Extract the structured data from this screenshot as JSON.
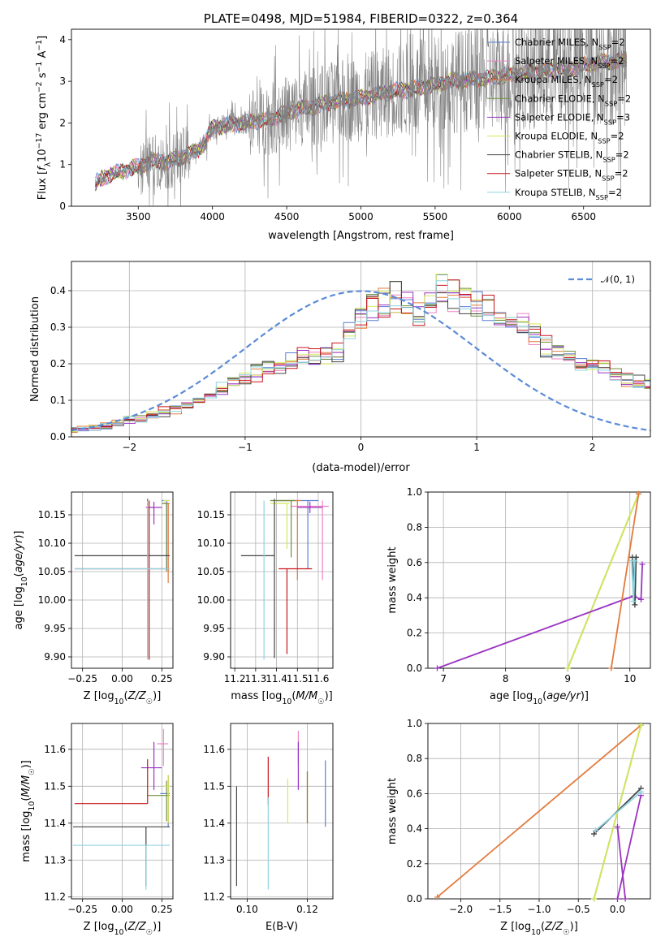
{
  "figure": {
    "title": "PLATE=0498, MJD=51984, FIBERID=0322, z=0.364"
  },
  "models": [
    {
      "name": "Chabrier MILES",
      "nssp": "2",
      "color": "#5b7fd4"
    },
    {
      "name": "Salpeter MILES",
      "nssp": "2",
      "color": "#ee82c3"
    },
    {
      "name": "Kroupa MILES",
      "nssp": "2",
      "color": "#e27b3c"
    },
    {
      "name": "Chabrier ELODIE",
      "nssp": "2",
      "color": "#6f8f3e"
    },
    {
      "name": "Salpeter ELODIE",
      "nssp": "3",
      "color": "#9b33c2"
    },
    {
      "name": "Kroupa ELODIE",
      "nssp": "2",
      "color": "#d4e85a"
    },
    {
      "name": "Chabrier STELIB",
      "nssp": "2",
      "color": "#444444"
    },
    {
      "name": "Salpeter STELIB",
      "nssp": "2",
      "color": "#c8161d"
    },
    {
      "name": "Kroupa STELIB",
      "nssp": "2",
      "color": "#8fd4e0"
    }
  ],
  "chart_data": [
    {
      "id": "spectrum",
      "type": "line",
      "title": "PLATE=0498, MJD=51984, FIBERID=0322, z=0.364",
      "xlabel": "wavelength [Angstrom, rest frame]",
      "ylabel": "Flux [f_λ 10^-17 erg cm^-2 s^-1 A^-1]",
      "xlim": [
        3050,
        6950
      ],
      "ylim": [
        0,
        4.25
      ],
      "xticks": [
        3500,
        4000,
        4500,
        5000,
        5500,
        6000,
        6500
      ],
      "yticks": [
        0,
        1,
        2,
        3,
        4
      ],
      "data_color": "#808080",
      "continuum": {
        "x": [
          3210,
          3300,
          3400,
          3500,
          3600,
          3700,
          3800,
          3900,
          3950,
          4000,
          4100,
          4200,
          4300,
          4400,
          4500,
          4600,
          4700,
          4800,
          4900,
          5000,
          5200,
          5400,
          5600,
          5800,
          6000,
          6200,
          6400,
          6600,
          6790
        ],
        "y": [
          0.55,
          0.75,
          0.85,
          0.95,
          1.1,
          1.05,
          1.2,
          1.35,
          1.55,
          1.9,
          1.95,
          2.0,
          2.05,
          2.1,
          2.25,
          2.35,
          2.4,
          2.5,
          2.55,
          2.6,
          2.75,
          2.85,
          3.0,
          3.05,
          3.15,
          3.25,
          3.3,
          3.45,
          3.5
        ]
      },
      "legend_loc": "upper right"
    },
    {
      "id": "residuals",
      "type": "line",
      "xlabel": "(data-model)/error",
      "ylabel": "Normed distribution",
      "xlim": [
        -2.5,
        2.5
      ],
      "ylim": [
        0,
        0.48
      ],
      "xticks": [
        -2,
        -1,
        0,
        1,
        2
      ],
      "yticks": [
        0.0,
        0.1,
        0.2,
        0.3,
        0.4
      ],
      "gaussian_label": "𝒩(0, 1)",
      "gaussian_color": "#5b8bd6",
      "bin_width": 0.1,
      "hist_base": [
        0.018,
        0.022,
        0.028,
        0.032,
        0.038,
        0.045,
        0.05,
        0.058,
        0.068,
        0.075,
        0.085,
        0.1,
        0.115,
        0.13,
        0.145,
        0.16,
        0.175,
        0.19,
        0.2,
        0.21,
        0.22,
        0.22,
        0.225,
        0.23,
        0.28,
        0.33,
        0.35,
        0.37,
        0.38,
        0.36,
        0.34,
        0.37,
        0.41,
        0.39,
        0.37,
        0.36,
        0.36,
        0.33,
        0.32,
        0.31,
        0.28,
        0.25,
        0.23,
        0.21,
        0.2,
        0.2,
        0.19,
        0.17,
        0.16,
        0.15,
        0.14,
        0.13,
        0.12,
        0.11,
        0.1,
        0.095,
        0.09,
        0.08,
        0.075,
        0.07,
        0.065,
        0.065,
        0.06,
        0.055,
        0.05,
        0.048,
        0.045
      ],
      "legend_loc": "upper right"
    },
    {
      "id": "age_vs_Z",
      "type": "scatter",
      "xlabel": "Z [log10(Z/Z☉)]",
      "ylabel": "age  [log10(age/yr)]",
      "xlim": [
        -0.32,
        0.32
      ],
      "ylim": [
        9.88,
        10.19
      ],
      "xticks": [
        -0.25,
        0.0,
        0.25
      ],
      "yticks": [
        9.9,
        9.95,
        10.0,
        10.05,
        10.1,
        10.15
      ],
      "points": [
        {
          "model": 0,
          "x": 0.28,
          "y": 10.175,
          "xerr": [
            0.03,
            0.02
          ],
          "yerr": [
            0.12,
            0.0
          ]
        },
        {
          "model": 1,
          "x": 0.29,
          "y": 10.17,
          "xerr": [
            0.04,
            0.01
          ],
          "yerr": [
            0.12,
            0.0
          ]
        },
        {
          "model": 2,
          "x": 0.29,
          "y": 10.17,
          "xerr": [
            0.03,
            0.01
          ],
          "yerr": [
            0.14,
            0.0
          ]
        },
        {
          "model": 3,
          "x": 0.28,
          "y": 10.17,
          "xerr": [
            0.03,
            0.01
          ],
          "yerr": [
            0.12,
            0.0
          ]
        },
        {
          "model": 4,
          "x": 0.2,
          "y": 10.163,
          "xerr": [
            0.05,
            0.05
          ],
          "yerr": [
            0.03,
            0.01
          ]
        },
        {
          "model": 5,
          "x": 0.29,
          "y": 10.175,
          "xerr": [
            0.03,
            0.01
          ],
          "yerr": [
            0.0,
            0.0
          ]
        },
        {
          "model": 6,
          "x": 0.16,
          "y": 10.078,
          "xerr": [
            0.46,
            0.14
          ],
          "yerr": [
            0.18,
            0.1
          ]
        },
        {
          "model": 7,
          "x": 0.17,
          "y": 10.055,
          "xerr": [
            0.47,
            0.13
          ],
          "yerr": [
            0.16,
            0.12
          ]
        },
        {
          "model": 8,
          "x": 0.16,
          "y": 10.055,
          "xerr": [
            0.46,
            0.14
          ],
          "yerr": [
            0.16,
            0.12
          ]
        }
      ]
    },
    {
      "id": "age_vs_mass",
      "type": "scatter",
      "xlabel": "mass [log10(M/M☉)]",
      "ylabel": "",
      "xlim": [
        11.18,
        11.67
      ],
      "ylim": [
        9.88,
        10.19
      ],
      "xticks": [
        11.2,
        11.3,
        11.4,
        11.5,
        11.6
      ],
      "yticks": [
        9.9,
        9.95,
        10.0,
        10.05,
        10.1,
        10.15
      ],
      "points": [
        {
          "model": 0,
          "x": 11.55,
          "y": 10.175,
          "xerr": [
            0.15,
            0.05
          ],
          "yerr": [
            0.12,
            0.0
          ]
        },
        {
          "model": 1,
          "x": 11.62,
          "y": 10.165,
          "xerr": [
            0.15,
            0.03
          ],
          "yerr": [
            0.13,
            0.01
          ]
        },
        {
          "model": 2,
          "x": 11.5,
          "y": 10.175,
          "xerr": [
            0.1,
            0.02
          ],
          "yerr": [
            0.14,
            0.0
          ]
        },
        {
          "model": 3,
          "x": 11.47,
          "y": 10.175,
          "xerr": [
            0.1,
            0.02
          ],
          "yerr": [
            0.1,
            0.0
          ]
        },
        {
          "model": 4,
          "x": 11.56,
          "y": 10.163,
          "xerr": [
            0.06,
            0.06
          ],
          "yerr": [
            0.01,
            0.01
          ]
        },
        {
          "model": 5,
          "x": 11.45,
          "y": 10.17,
          "xerr": [
            0.08,
            0.01
          ],
          "yerr": [
            0.08,
            0.0
          ]
        },
        {
          "model": 6,
          "x": 11.39,
          "y": 10.078,
          "xerr": [
            0.16,
            0.0
          ],
          "yerr": [
            0.18,
            0.1
          ]
        },
        {
          "model": 7,
          "x": 11.45,
          "y": 10.055,
          "xerr": [
            0.04,
            0.12
          ],
          "yerr": [
            0.15,
            0.0
          ]
        },
        {
          "model": 8,
          "x": 11.34,
          "y": 10.055,
          "xerr": [
            0.0,
            0.0
          ],
          "yerr": [
            0.16,
            0.12
          ]
        }
      ]
    },
    {
      "id": "weight_vs_age",
      "type": "line",
      "xlabel": "age  [log10(age/yr)]",
      "ylabel": "mass weight",
      "xlim": [
        6.75,
        10.33
      ],
      "ylim": [
        0,
        1.0
      ],
      "xticks": [
        7,
        8,
        9,
        10
      ],
      "yticks": [
        0.0,
        0.2,
        0.4,
        0.6,
        0.8,
        1.0
      ],
      "series": [
        {
          "model": 3,
          "x": [
            9.0,
            10.14
          ],
          "y": [
            0.0,
            0.99
          ]
        },
        {
          "model": 5,
          "x": [
            9.0,
            10.14
          ],
          "y": [
            0.0,
            0.99
          ]
        },
        {
          "model": 4,
          "x": [
            6.9,
            10.06,
            10.18,
            10.2
          ],
          "y": [
            0.0,
            0.41,
            0.39,
            0.59
          ]
        },
        {
          "model": 2,
          "x": [
            9.7,
            10.14
          ],
          "y": [
            0.0,
            0.99
          ]
        },
        {
          "model": 6,
          "x": [
            10.04,
            10.08,
            10.1
          ],
          "y": [
            0.63,
            0.36,
            0.63
          ]
        },
        {
          "model": 8,
          "x": [
            10.03,
            10.06,
            10.08
          ],
          "y": [
            0.61,
            0.38,
            0.61
          ]
        }
      ]
    },
    {
      "id": "mass_vs_Z",
      "type": "scatter",
      "xlabel": "Z [log10(Z/Z☉)]",
      "ylabel": "mass [log10(M/M☉)]",
      "xlim": [
        -0.32,
        0.32
      ],
      "ylim": [
        11.195,
        11.67
      ],
      "xticks": [
        -0.25,
        0.0,
        0.25
      ],
      "yticks": [
        11.2,
        11.3,
        11.4,
        11.5,
        11.6
      ],
      "points": [
        {
          "model": 0,
          "x": 0.29,
          "y": 11.48,
          "xerr": [
            0.05,
            0.01
          ],
          "yerr": [
            0.09,
            0.05
          ]
        },
        {
          "model": 1,
          "x": 0.26,
          "y": 11.615,
          "xerr": [
            0.04,
            0.03
          ],
          "yerr": [
            0.06,
            0.04
          ]
        },
        {
          "model": 2,
          "x": 0.29,
          "y": 11.5,
          "xerr": [
            0.02,
            0.01
          ],
          "yerr": [
            0.1,
            0.03
          ]
        },
        {
          "model": 3,
          "x": 0.28,
          "y": 11.475,
          "xerr": [
            0.12,
            0.02
          ],
          "yerr": [
            0.07,
            0.04
          ]
        },
        {
          "model": 4,
          "x": 0.2,
          "y": 11.55,
          "xerr": [
            0.08,
            0.05
          ],
          "yerr": [
            0.06,
            0.07
          ]
        },
        {
          "model": 5,
          "x": 0.29,
          "y": 11.5,
          "xerr": [
            0.03,
            0.01
          ],
          "yerr": [
            0.1,
            0.03
          ]
        },
        {
          "model": 6,
          "x": 0.15,
          "y": 11.39,
          "xerr": [
            0.46,
            0.15
          ],
          "yerr": [
            0.16,
            0.0
          ]
        },
        {
          "model": 7,
          "x": 0.16,
          "y": 11.453,
          "xerr": [
            0.46,
            0.0
          ],
          "yerr": [
            0.0,
            0.12
          ]
        },
        {
          "model": 8,
          "x": 0.15,
          "y": 11.34,
          "xerr": [
            0.46,
            0.15
          ],
          "yerr": [
            0.12,
            0.0
          ]
        }
      ]
    },
    {
      "id": "mass_vs_ebv",
      "type": "scatter",
      "xlabel": "E(B-V)",
      "ylabel": "",
      "xlim": [
        0.0945,
        0.1285
      ],
      "ylim": [
        11.195,
        11.67
      ],
      "xticks": [
        0.1,
        0.12
      ],
      "yticks": [
        11.2,
        11.3,
        11.4,
        11.5,
        11.6
      ],
      "points": [
        {
          "model": 0,
          "x": 0.126,
          "y": 11.48,
          "xerr": [
            0,
            0
          ],
          "yerr": [
            0.09,
            0.09
          ]
        },
        {
          "model": 1,
          "x": 0.117,
          "y": 11.6,
          "xerr": [
            0,
            0
          ],
          "yerr": [
            0.04,
            0.05
          ]
        },
        {
          "model": 2,
          "x": 0.12,
          "y": 11.5,
          "xerr": [
            0,
            0
          ],
          "yerr": [
            0.1,
            0.04
          ]
        },
        {
          "model": 3,
          "x": 0.12,
          "y": 11.47,
          "xerr": [
            0,
            0
          ],
          "yerr": [
            0.07,
            0.07
          ]
        },
        {
          "model": 4,
          "x": 0.117,
          "y": 11.55,
          "xerr": [
            0,
            0
          ],
          "yerr": [
            0.06,
            0.07
          ]
        },
        {
          "model": 5,
          "x": 0.1135,
          "y": 11.46,
          "xerr": [
            0,
            0
          ],
          "yerr": [
            0.06,
            0.06
          ]
        },
        {
          "model": 6,
          "x": 0.0965,
          "y": 11.36,
          "xerr": [
            0,
            0
          ],
          "yerr": [
            0.13,
            0.14
          ]
        },
        {
          "model": 7,
          "x": 0.107,
          "y": 11.49,
          "xerr": [
            0,
            0
          ],
          "yerr": [
            0.04,
            0.09
          ]
        },
        {
          "model": 8,
          "x": 0.107,
          "y": 11.34,
          "xerr": [
            0,
            0
          ],
          "yerr": [
            0.12,
            0.13
          ]
        }
      ]
    },
    {
      "id": "weight_vs_Z",
      "type": "line",
      "xlabel": "Z [log10(Z/Z☉)]",
      "ylabel": "mass weight",
      "xlim": [
        -2.42,
        0.42
      ],
      "ylim": [
        0,
        1.0
      ],
      "xticks": [
        -2.0,
        -1.5,
        -1.0,
        -0.5,
        0.0
      ],
      "yticks": [
        0.0,
        0.2,
        0.4,
        0.6,
        0.8,
        1.0
      ],
      "series": [
        {
          "model": 2,
          "x": [
            -2.3,
            0.3
          ],
          "y": [
            0.01,
            0.99
          ]
        },
        {
          "model": 3,
          "x": [
            -0.3,
            0.3
          ],
          "y": [
            0.0,
            0.99
          ]
        },
        {
          "model": 5,
          "x": [
            -0.3,
            0.3
          ],
          "y": [
            0.0,
            0.99
          ]
        },
        {
          "model": 4,
          "x": [
            0.0,
            0.3
          ],
          "y": [
            0.0,
            0.59
          ]
        },
        {
          "model": 4,
          "x": [
            0.0,
            0.1
          ],
          "y": [
            0.41,
            0.0
          ]
        },
        {
          "model": 6,
          "x": [
            -0.3,
            0.3
          ],
          "y": [
            0.37,
            0.63
          ]
        },
        {
          "model": 8,
          "x": [
            -0.28,
            0.3
          ],
          "y": [
            0.39,
            0.61
          ]
        }
      ]
    }
  ]
}
